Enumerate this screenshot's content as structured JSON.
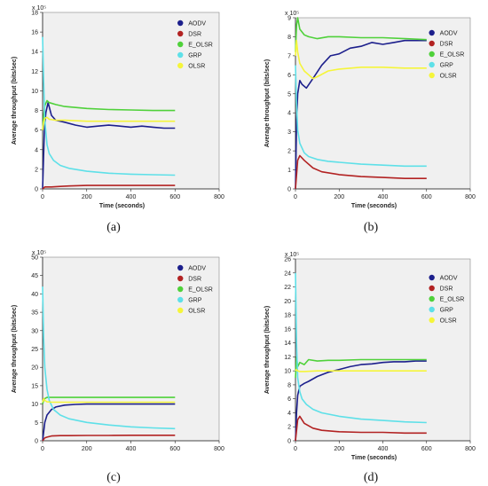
{
  "colors": {
    "AODV": "#1c1f8c",
    "DSR": "#b22222",
    "E_OLSR": "#4fd13a",
    "GRP": "#5ee0e8",
    "OLSR": "#f5f53a",
    "plot_bg": "#f0f0f0"
  },
  "chart_data": [
    {
      "type": "line",
      "caption": "(a)",
      "multiplier": "x 10⁵",
      "xlabel": "Time (seconds)",
      "ylabel": "Average  throughput (bits/sec)",
      "xlim": [
        0,
        800
      ],
      "ylim": [
        0,
        18
      ],
      "xticks": [
        0,
        200,
        400,
        600,
        800
      ],
      "yticks": [
        0,
        2,
        4,
        6,
        8,
        10,
        12,
        14,
        16,
        18
      ],
      "legend": [
        "AODV",
        "DSR",
        "E_OLSR",
        "GRP",
        "OLSR"
      ],
      "series": [
        {
          "name": "AODV",
          "x": [
            0,
            8,
            15,
            25,
            40,
            60,
            100,
            150,
            200,
            250,
            300,
            350,
            400,
            450,
            500,
            550,
            600
          ],
          "y": [
            0,
            6,
            7.8,
            8.8,
            7.5,
            7.0,
            6.8,
            6.5,
            6.3,
            6.4,
            6.5,
            6.4,
            6.3,
            6.4,
            6.3,
            6.2,
            6.2
          ]
        },
        {
          "name": "DSR",
          "x": [
            0,
            10,
            20,
            40,
            80,
            120,
            200,
            300,
            400,
            500,
            600
          ],
          "y": [
            0,
            0.2,
            0.2,
            0.2,
            0.25,
            0.3,
            0.35,
            0.35,
            0.35,
            0.35,
            0.35
          ]
        },
        {
          "name": "E_OLSR",
          "x": [
            0,
            5,
            10,
            20,
            30,
            60,
            100,
            200,
            300,
            400,
            500,
            600
          ],
          "y": [
            6,
            7.5,
            8.5,
            9.0,
            8.8,
            8.6,
            8.4,
            8.2,
            8.1,
            8.05,
            8.0,
            8.0
          ]
        },
        {
          "name": "GRP",
          "x": [
            0,
            5,
            10,
            20,
            30,
            50,
            80,
            120,
            200,
            300,
            400,
            500,
            600
          ],
          "y": [
            15.5,
            11,
            7,
            4.5,
            3.6,
            2.9,
            2.4,
            2.1,
            1.8,
            1.6,
            1.5,
            1.45,
            1.4
          ]
        },
        {
          "name": "OLSR",
          "x": [
            0,
            5,
            10,
            20,
            30,
            60,
            100,
            200,
            300,
            400,
            500,
            600
          ],
          "y": [
            6,
            6.8,
            7.2,
            7.3,
            7.1,
            7.0,
            7.0,
            6.9,
            6.9,
            6.9,
            6.9,
            6.9
          ]
        }
      ]
    },
    {
      "type": "line",
      "caption": "(b)",
      "multiplier": "x 10⁵",
      "xlabel": "Time (seconds)",
      "ylabel": "Average  throughput (bits/sec)",
      "xlim": [
        0,
        800
      ],
      "ylim": [
        0,
        9
      ],
      "xticks": [
        0,
        200,
        400,
        600,
        800
      ],
      "yticks": [
        0,
        1,
        2,
        3,
        4,
        5,
        6,
        7,
        8,
        9
      ],
      "legend": [
        "AODV",
        "DSR",
        "E_OLSR",
        "GRP",
        "OLSR"
      ],
      "series": [
        {
          "name": "AODV",
          "x": [
            0,
            5,
            10,
            20,
            30,
            50,
            80,
            120,
            160,
            200,
            250,
            300,
            350,
            400,
            450,
            500,
            550,
            600
          ],
          "y": [
            0,
            3.5,
            5.0,
            5.7,
            5.5,
            5.3,
            5.8,
            6.5,
            7.0,
            7.1,
            7.4,
            7.5,
            7.7,
            7.6,
            7.7,
            7.8,
            7.8,
            7.8
          ]
        },
        {
          "name": "DSR",
          "x": [
            0,
            10,
            20,
            40,
            80,
            120,
            200,
            300,
            400,
            500,
            600
          ],
          "y": [
            0,
            1.5,
            1.75,
            1.5,
            1.1,
            0.9,
            0.75,
            0.65,
            0.6,
            0.55,
            0.55
          ]
        },
        {
          "name": "E_OLSR",
          "x": [
            0,
            5,
            10,
            20,
            40,
            60,
            100,
            150,
            200,
            300,
            400,
            500,
            600
          ],
          "y": [
            7.2,
            8.6,
            9.0,
            8.4,
            8.1,
            8.0,
            7.9,
            8.0,
            8.0,
            7.95,
            7.95,
            7.9,
            7.85
          ]
        },
        {
          "name": "GRP",
          "x": [
            0,
            5,
            10,
            20,
            40,
            60,
            100,
            150,
            200,
            300,
            400,
            500,
            600
          ],
          "y": [
            6.5,
            4.5,
            3.1,
            2.4,
            1.9,
            1.7,
            1.55,
            1.45,
            1.4,
            1.3,
            1.25,
            1.2,
            1.2
          ]
        },
        {
          "name": "OLSR",
          "x": [
            0,
            5,
            10,
            20,
            40,
            60,
            80,
            100,
            150,
            200,
            300,
            400,
            500,
            600
          ],
          "y": [
            7.0,
            7.8,
            7.2,
            6.6,
            6.2,
            6.0,
            5.8,
            5.9,
            6.2,
            6.3,
            6.4,
            6.4,
            6.35,
            6.35
          ]
        }
      ]
    },
    {
      "type": "line",
      "caption": "(c)",
      "multiplier": "x 10⁵",
      "xlabel": "",
      "ylabel": "Average  throughput (bits/sec)",
      "xlim": [
        0,
        800
      ],
      "ylim": [
        0,
        50
      ],
      "xticks": [
        0,
        200,
        400,
        600,
        800
      ],
      "yticks": [
        0,
        5,
        10,
        15,
        20,
        25,
        30,
        35,
        40,
        45,
        50
      ],
      "legend": [
        "AODV",
        "DSR",
        "E_OLSR",
        "GRP",
        "OLSR"
      ],
      "series": [
        {
          "name": "AODV",
          "x": [
            0,
            10,
            20,
            40,
            60,
            100,
            150,
            200,
            300,
            400,
            500,
            600
          ],
          "y": [
            0,
            5,
            7,
            8.5,
            9.2,
            9.7,
            9.9,
            10,
            10,
            10,
            10,
            10
          ]
        },
        {
          "name": "DSR",
          "x": [
            0,
            10,
            20,
            40,
            80,
            120,
            200,
            300,
            400,
            500,
            600
          ],
          "y": [
            0,
            0.8,
            1.0,
            1.3,
            1.4,
            1.4,
            1.45,
            1.45,
            1.5,
            1.5,
            1.5
          ]
        },
        {
          "name": "E_OLSR",
          "x": [
            0,
            5,
            10,
            20,
            40,
            100,
            200,
            300,
            400,
            500,
            600
          ],
          "y": [
            10,
            11,
            11.5,
            11.8,
            11.8,
            11.8,
            11.8,
            11.8,
            11.8,
            11.8,
            11.8
          ]
        },
        {
          "name": "GRP",
          "x": [
            0,
            5,
            10,
            20,
            30,
            50,
            80,
            120,
            200,
            300,
            400,
            500,
            600
          ],
          "y": [
            42,
            28,
            20,
            14,
            11,
            8.5,
            7,
            6,
            5,
            4.3,
            3.8,
            3.5,
            3.3
          ]
        },
        {
          "name": "OLSR",
          "x": [
            0,
            5,
            10,
            20,
            40,
            100,
            200,
            300,
            400,
            500,
            600
          ],
          "y": [
            10.5,
            11.5,
            11.0,
            10.6,
            10.5,
            10.5,
            10.5,
            10.5,
            10.5,
            10.5,
            10.5
          ]
        }
      ]
    },
    {
      "type": "line",
      "caption": "(d)",
      "multiplier": "x 10⁵",
      "xlabel": "Time (seconds)",
      "ylabel": "Average  throughput (bits/sec)",
      "xlim": [
        0,
        800
      ],
      "ylim": [
        0,
        26
      ],
      "xticks": [
        0,
        200,
        400,
        600,
        800
      ],
      "yticks": [
        0,
        2,
        4,
        6,
        8,
        10,
        12,
        14,
        16,
        18,
        20,
        22,
        24,
        26
      ],
      "legend": [
        "AODV",
        "DSR",
        "E_OLSR",
        "GRP",
        "OLSR"
      ],
      "series": [
        {
          "name": "AODV",
          "x": [
            0,
            5,
            10,
            20,
            40,
            60,
            100,
            150,
            200,
            250,
            300,
            350,
            400,
            450,
            500,
            550,
            600
          ],
          "y": [
            0,
            4,
            6.5,
            7.8,
            8.2,
            8.5,
            9.2,
            9.8,
            10.2,
            10.6,
            10.9,
            11.0,
            11.2,
            11.3,
            11.3,
            11.4,
            11.4
          ]
        },
        {
          "name": "DSR",
          "x": [
            0,
            10,
            20,
            40,
            80,
            120,
            200,
            300,
            400,
            500,
            600
          ],
          "y": [
            0,
            3.0,
            3.5,
            2.5,
            1.8,
            1.5,
            1.3,
            1.2,
            1.2,
            1.1,
            1.1
          ]
        },
        {
          "name": "E_OLSR",
          "x": [
            0,
            5,
            10,
            20,
            40,
            60,
            100,
            150,
            200,
            300,
            400,
            500,
            600
          ],
          "y": [
            9,
            12,
            10.6,
            11.2,
            10.9,
            11.6,
            11.4,
            11.5,
            11.5,
            11.6,
            11.6,
            11.6,
            11.6
          ]
        },
        {
          "name": "GRP",
          "x": [
            0,
            5,
            10,
            20,
            30,
            50,
            80,
            120,
            200,
            300,
            400,
            500,
            600
          ],
          "y": [
            24,
            14,
            9,
            7,
            6,
            5.2,
            4.5,
            4.0,
            3.5,
            3.1,
            2.9,
            2.7,
            2.6
          ]
        },
        {
          "name": "OLSR",
          "x": [
            0,
            5,
            10,
            20,
            40,
            100,
            200,
            300,
            400,
            500,
            600
          ],
          "y": [
            10,
            10.2,
            10.0,
            9.9,
            9.9,
            10.0,
            10.0,
            10.0,
            10.0,
            10.0,
            10.0
          ]
        }
      ]
    }
  ]
}
